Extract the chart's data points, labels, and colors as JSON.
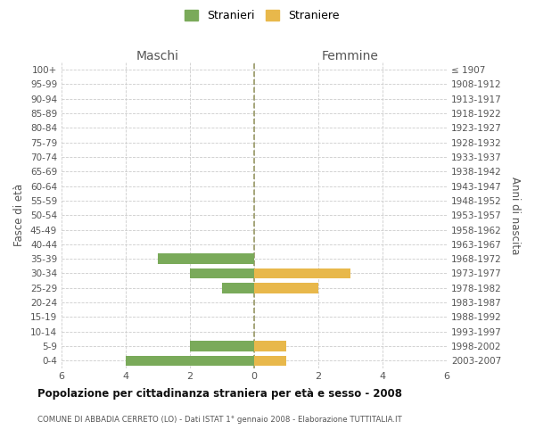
{
  "age_groups": [
    "100+",
    "95-99",
    "90-94",
    "85-89",
    "80-84",
    "75-79",
    "70-74",
    "65-69",
    "60-64",
    "55-59",
    "50-54",
    "45-49",
    "40-44",
    "35-39",
    "30-34",
    "25-29",
    "20-24",
    "15-19",
    "10-14",
    "5-9",
    "0-4"
  ],
  "birth_years": [
    "≤ 1907",
    "1908-1912",
    "1913-1917",
    "1918-1922",
    "1923-1927",
    "1928-1932",
    "1933-1937",
    "1938-1942",
    "1943-1947",
    "1948-1952",
    "1953-1957",
    "1958-1962",
    "1963-1967",
    "1968-1972",
    "1973-1977",
    "1978-1982",
    "1983-1987",
    "1988-1992",
    "1993-1997",
    "1998-2002",
    "2003-2007"
  ],
  "maschi": [
    0,
    0,
    0,
    0,
    0,
    0,
    0,
    0,
    0,
    0,
    0,
    0,
    0,
    3,
    2,
    1,
    0,
    0,
    0,
    2,
    4
  ],
  "femmine": [
    0,
    0,
    0,
    0,
    0,
    0,
    0,
    0,
    0,
    0,
    0,
    0,
    0,
    0,
    3,
    2,
    0,
    0,
    0,
    1,
    1
  ],
  "color_maschi": "#7aaa5a",
  "color_femmine": "#e8b84b",
  "background_color": "#ffffff",
  "grid_color": "#cccccc",
  "title": "Popolazione per cittadinanza straniera per età e sesso - 2008",
  "subtitle": "COMUNE DI ABBADIA CERRETO (LO) - Dati ISTAT 1° gennaio 2008 - Elaborazione TUTTITALIA.IT",
  "legend_stranieri": "Stranieri",
  "legend_straniere": "Straniere",
  "xlabel_left": "Maschi",
  "xlabel_right": "Femmine",
  "ylabel_left": "Fasce di età",
  "ylabel_right": "Anni di nascita",
  "xlim": 6,
  "bar_height": 0.7
}
